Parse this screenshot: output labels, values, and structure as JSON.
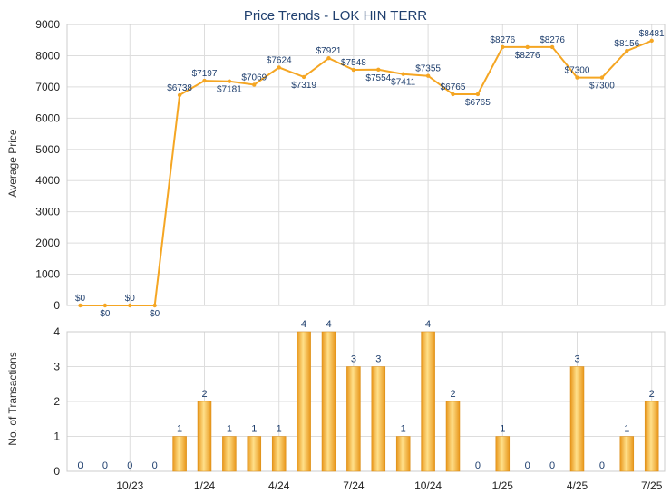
{
  "chart_data": [
    {
      "type": "line",
      "title": "Price Trends - LOK HIN TERR",
      "xlabel": "",
      "ylabel": "Average Price",
      "ylim": [
        0,
        9000
      ],
      "yticks": [
        0,
        1000,
        2000,
        3000,
        4000,
        5000,
        6000,
        7000,
        8000,
        9000
      ],
      "grid": true,
      "x": [
        "2023-08",
        "2023-09",
        "2023-10",
        "2023-11",
        "2023-12",
        "2024-01",
        "2024-02",
        "2024-03",
        "2024-04",
        "2024-05",
        "2024-06",
        "2024-07",
        "2024-08",
        "2024-09",
        "2024-10",
        "2024-11",
        "2024-12",
        "2025-01",
        "2025-02",
        "2025-03",
        "2025-04",
        "2025-05",
        "2025-06",
        "2025-07"
      ],
      "series": [
        {
          "values": [
            0,
            0,
            0,
            0,
            6738,
            7197,
            7181,
            7069,
            7624,
            7319,
            7921,
            7548,
            7554,
            7411,
            7355,
            6765,
            6765,
            8276,
            8276,
            8276,
            7300,
            7300,
            8156,
            8481
          ],
          "labels": [
            "$0",
            "$0",
            "$0",
            "$0",
            "$6738",
            "$7197",
            "$7181",
            "$7069",
            "$7624",
            "$7319",
            "$7921",
            "$7548",
            "$7554",
            "$7411",
            "$7355",
            "$6765",
            "$6765",
            "$8276",
            "$8276",
            "$8276",
            "$7300",
            "$7300",
            "$8156",
            "$8481"
          ],
          "color": "#f5a623"
        }
      ]
    },
    {
      "type": "bar",
      "xlabel": "",
      "ylabel": "No. of Transactions",
      "ylim": [
        0,
        4
      ],
      "yticks": [
        0,
        1,
        2,
        3,
        4
      ],
      "grid": true,
      "categories": [
        "2023-08",
        "2023-09",
        "2023-10",
        "2023-11",
        "2023-12",
        "2024-01",
        "2024-02",
        "2024-03",
        "2024-04",
        "2024-05",
        "2024-06",
        "2024-07",
        "2024-08",
        "2024-09",
        "2024-10",
        "2024-11",
        "2024-12",
        "2025-01",
        "2025-02",
        "2025-03",
        "2025-04",
        "2025-05",
        "2025-06",
        "2025-07"
      ],
      "values": [
        0,
        0,
        0,
        0,
        1,
        2,
        1,
        1,
        1,
        4,
        4,
        3,
        3,
        1,
        4,
        2,
        0,
        1,
        0,
        0,
        3,
        0,
        1,
        2
      ],
      "x_tick_labels": [
        "10/23",
        "1/24",
        "4/24",
        "7/24",
        "10/24",
        "1/25",
        "4/25",
        "7/25"
      ],
      "color": "#f5a623"
    }
  ],
  "colors": {
    "line": "#f5a623",
    "bar_light": "#ffe08a",
    "bar_dark": "#e8961a",
    "label": "#1f3f6e",
    "title": "#1f3f6e",
    "grid": "#dddddd",
    "axis": "#333333"
  }
}
